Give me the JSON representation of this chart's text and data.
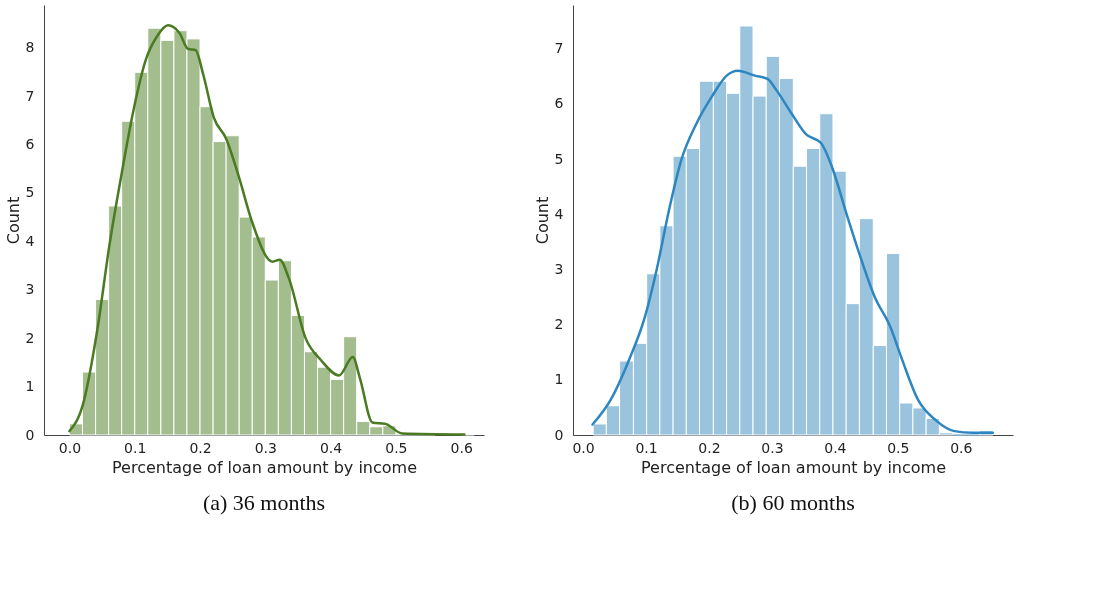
{
  "chart_data": [
    {
      "type": "histogram",
      "title": "(a) 36 months",
      "xlabel": "Percentage of loan amount by income",
      "ylabel": "Count",
      "color": "#a3bd8f",
      "grid": false,
      "bins": [
        0,
        0.02,
        0.04,
        0.06,
        0.08,
        0.1,
        0.12,
        0.14,
        0.16,
        0.18,
        0.2,
        0.22,
        0.24,
        0.26,
        0.28,
        0.3,
        0.32,
        0.34,
        0.36,
        0.38,
        0.4,
        0.42,
        0.44,
        0.46,
        0.48,
        0.5,
        0.52,
        0.54,
        0.56,
        0.58,
        0.6,
        0.62
      ],
      "values": [
        0.23,
        1.3,
        2.8,
        4.73,
        6.48,
        7.49,
        8.4,
        8.15,
        8.35,
        8.18,
        6.78,
        6.06,
        6.18,
        4.5,
        4.09,
        3.2,
        3.6,
        2.47,
        1.72,
        1.4,
        1.15,
        2.03,
        0.28,
        0.17,
        0.19,
        0.02,
        0.01,
        0.01,
        null,
        null,
        0.01
      ],
      "xlim": [
        -0.039,
        0.635
      ],
      "xticks": [
        {
          "value": 0,
          "label": "0.0"
        },
        0.1,
        0.2,
        0.3,
        0.4,
        0.5,
        0.6
      ],
      "ylim": [
        0,
        8.88
      ],
      "yticks": [
        0,
        1,
        2,
        3,
        4,
        5,
        6,
        7,
        8
      ],
      "series": [
        {
          "type": "line",
          "color": "#4a7a21",
          "x": [
            0.0,
            0.02,
            0.043,
            0.061,
            0.08,
            0.098,
            0.117,
            0.135,
            0.151,
            0.168,
            0.182,
            0.193,
            0.205,
            0.221,
            0.24,
            0.26,
            0.279,
            0.311,
            0.322,
            0.336,
            0.362,
            0.385,
            0.413,
            0.434,
            0.445,
            0.464,
            0.484,
            0.51,
            0.605
          ],
          "values": [
            0.08,
            0.6,
            2.2,
            3.9,
            5.4,
            6.7,
            7.75,
            8.25,
            8.46,
            8.31,
            7.97,
            7.95,
            7.44,
            6.56,
            6.12,
            5.31,
            4.43,
            3.58,
            3.62,
            3.24,
            1.99,
            1.55,
            1.23,
            1.61,
            1.17,
            0.26,
            0.23,
            0.03,
            0.01
          ]
        }
      ]
    },
    {
      "type": "histogram",
      "title": "(b) 60 months",
      "xlabel": "Percentage of loan amount by income",
      "ylabel": "Count",
      "color": "#9ac4de",
      "grid": false,
      "bins": [
        0.016,
        0.037,
        0.058,
        0.08,
        0.101,
        0.122,
        0.143,
        0.164,
        0.185,
        0.207,
        0.228,
        0.249,
        0.27,
        0.291,
        0.312,
        0.334,
        0.355,
        0.376,
        0.397,
        0.418,
        0.439,
        0.461,
        0.482,
        0.503,
        0.524,
        0.545,
        0.566,
        0.588,
        0.609,
        0.63,
        0.651
      ],
      "values": [
        0.2,
        0.53,
        1.34,
        1.66,
        2.92,
        3.79,
        5.05,
        5.19,
        6.41,
        6.41,
        6.19,
        7.41,
        6.14,
        6.86,
        6.46,
        4.87,
        5.19,
        5.82,
        4.78,
        2.38,
        3.92,
        1.62,
        3.29,
        0.58,
        0.49,
        0.3,
        0.04,
        0,
        0,
        0.08
      ],
      "xlim": [
        -0.016,
        0.683
      ],
      "xticks": [
        {
          "value": 0,
          "label": "0.0"
        },
        0.1,
        0.2,
        0.3,
        0.4,
        0.5,
        0.6
      ],
      "ylim": [
        0,
        7.79
      ],
      "yticks": [
        0,
        1,
        2,
        3,
        4,
        5,
        6,
        7
      ],
      "series": [
        {
          "type": "line",
          "color": "#2e86c1",
          "x": [
            0.015,
            0.044,
            0.073,
            0.098,
            0.117,
            0.137,
            0.156,
            0.18,
            0.205,
            0.229,
            0.246,
            0.273,
            0.293,
            0.307,
            0.332,
            0.354,
            0.378,
            0.395,
            0.419,
            0.439,
            0.463,
            0.488,
            0.507,
            0.532,
            0.561,
            0.59,
            0.619,
            0.651
          ],
          "values": [
            0.19,
            0.64,
            1.36,
            2.13,
            3.0,
            4.1,
            4.98,
            5.64,
            6.14,
            6.52,
            6.6,
            6.51,
            6.45,
            6.25,
            5.81,
            5.45,
            5.29,
            4.87,
            3.99,
            3.28,
            2.51,
            1.96,
            1.36,
            0.64,
            0.26,
            0.07,
            0.04,
            0.04
          ]
        }
      ]
    }
  ]
}
